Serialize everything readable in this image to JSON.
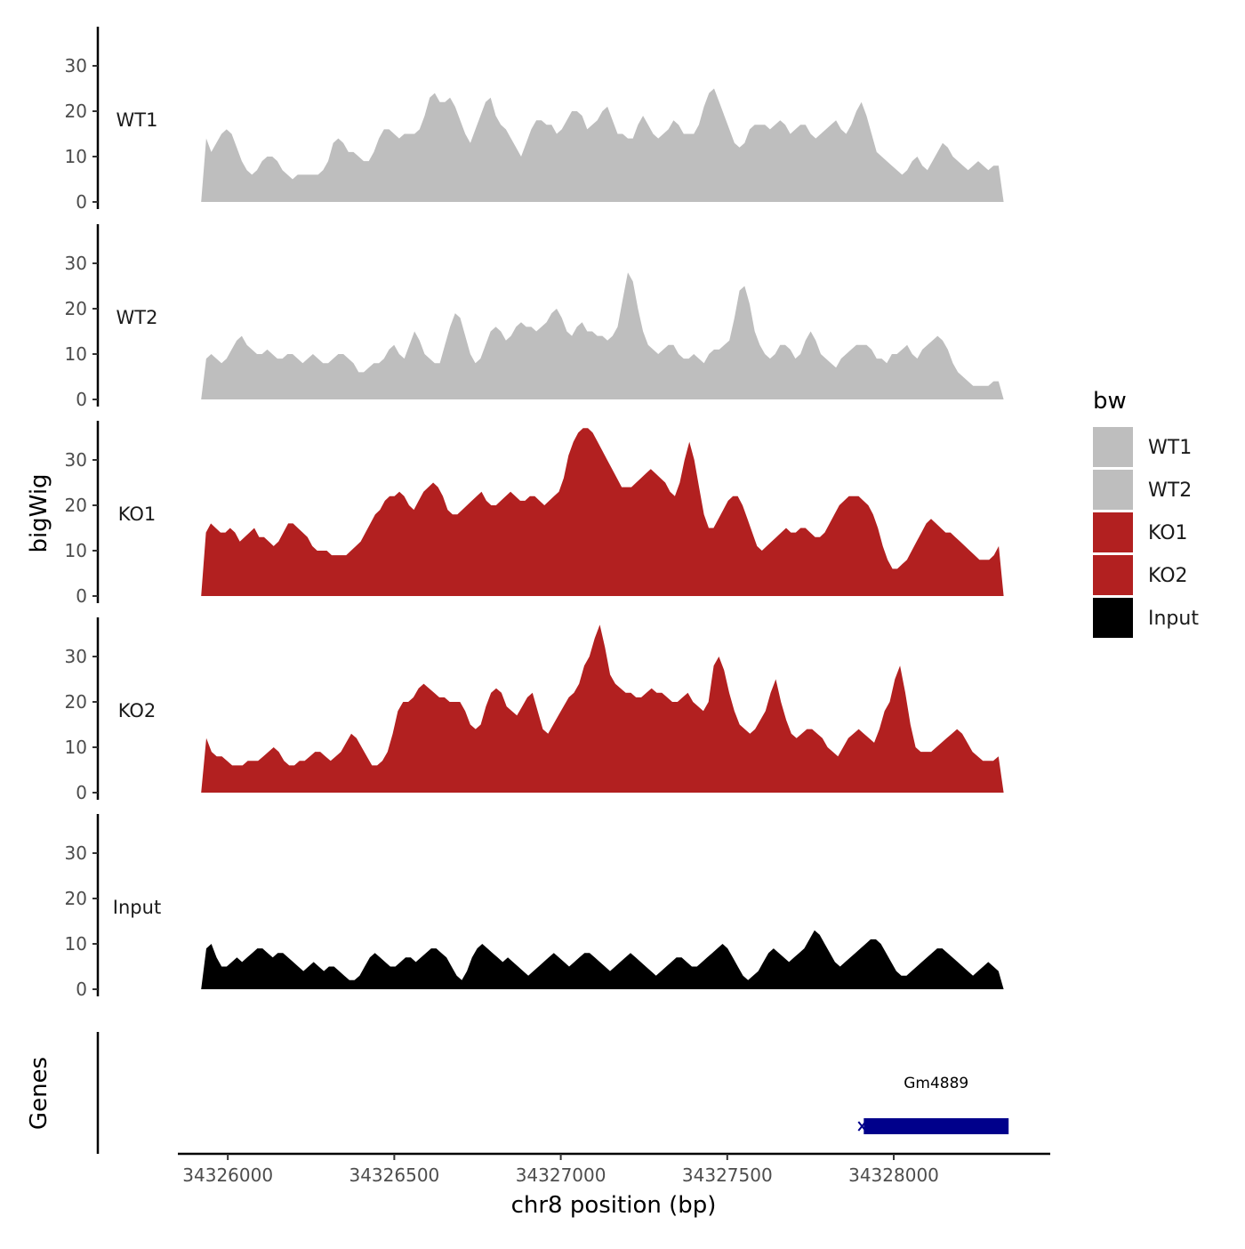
{
  "chart_data": {
    "type": "area",
    "title": "",
    "xlabel": "chr8 position (bp)",
    "ylabel": "bigWig",
    "genes_label": "Genes",
    "xlim": [
      34325850,
      34328470
    ],
    "ylim": [
      0,
      37
    ],
    "x_ticks": [
      34326000,
      34326500,
      34327000,
      34327500,
      34328000
    ],
    "y_ticks": [
      0,
      10,
      20,
      30
    ],
    "x_start": 34325920,
    "x_end": 34328330,
    "legend": {
      "title": "bw",
      "position": "right",
      "entries": [
        {
          "name": "WT1",
          "color": "#bebebe"
        },
        {
          "name": "WT2",
          "color": "#bebebe"
        },
        {
          "name": "KO1",
          "color": "#b22020"
        },
        {
          "name": "KO2",
          "color": "#b22020"
        },
        {
          "name": "Input",
          "color": "#000000"
        }
      ]
    },
    "series": [
      {
        "name": "WT1",
        "color": "#bebebe",
        "values": [
          0,
          14,
          11,
          13,
          15,
          16,
          15,
          12,
          9,
          7,
          6,
          7,
          9,
          10,
          10,
          9,
          7,
          6,
          5,
          6,
          6,
          6,
          6,
          6,
          7,
          9,
          13,
          14,
          13,
          11,
          11,
          10,
          9,
          9,
          11,
          14,
          16,
          16,
          15,
          14,
          15,
          15,
          15,
          16,
          19,
          23,
          24,
          22,
          22,
          23,
          21,
          18,
          15,
          13,
          16,
          19,
          22,
          23,
          19,
          17,
          16,
          14,
          12,
          10,
          13,
          16,
          18,
          18,
          17,
          17,
          15,
          16,
          18,
          20,
          20,
          19,
          16,
          17,
          18,
          20,
          21,
          18,
          15,
          15,
          14,
          14,
          17,
          19,
          17,
          15,
          14,
          15,
          16,
          18,
          17,
          15,
          15,
          15,
          17,
          21,
          24,
          25,
          22,
          19,
          16,
          13,
          12,
          13,
          16,
          17,
          17,
          17,
          16,
          17,
          18,
          17,
          15,
          16,
          17,
          17,
          15,
          14,
          15,
          16,
          17,
          18,
          16,
          15,
          17,
          20,
          22,
          19,
          15,
          11,
          10,
          9,
          8,
          7,
          6,
          7,
          9,
          10,
          8,
          7,
          9,
          11,
          13,
          12,
          10,
          9,
          8,
          7,
          8,
          9,
          8,
          7,
          8,
          8,
          0
        ]
      },
      {
        "name": "WT2",
        "color": "#bebebe",
        "values": [
          0,
          9,
          10,
          9,
          8,
          9,
          11,
          13,
          14,
          12,
          11,
          10,
          10,
          11,
          10,
          9,
          9,
          10,
          10,
          9,
          8,
          9,
          10,
          9,
          8,
          8,
          9,
          10,
          10,
          9,
          8,
          6,
          6,
          7,
          8,
          8,
          9,
          11,
          12,
          10,
          9,
          12,
          15,
          13,
          10,
          9,
          8,
          8,
          12,
          16,
          19,
          18,
          14,
          10,
          8,
          9,
          12,
          15,
          16,
          15,
          13,
          14,
          16,
          17,
          16,
          16,
          15,
          16,
          17,
          19,
          20,
          18,
          15,
          14,
          16,
          17,
          15,
          15,
          14,
          14,
          13,
          14,
          16,
          22,
          28,
          26,
          20,
          15,
          12,
          11,
          10,
          11,
          12,
          12,
          10,
          9,
          9,
          10,
          9,
          8,
          10,
          11,
          11,
          12,
          13,
          18,
          24,
          25,
          21,
          15,
          12,
          10,
          9,
          10,
          12,
          12,
          11,
          9,
          10,
          13,
          15,
          13,
          10,
          9,
          8,
          7,
          9,
          10,
          11,
          12,
          12,
          12,
          11,
          9,
          9,
          8,
          10,
          10,
          11,
          12,
          10,
          9,
          11,
          12,
          13,
          14,
          13,
          11,
          8,
          6,
          5,
          4,
          3,
          3,
          3,
          3,
          4,
          4,
          0
        ]
      },
      {
        "name": "KO1",
        "color": "#b22020",
        "values": [
          0,
          14,
          16,
          15,
          14,
          14,
          15,
          14,
          12,
          13,
          14,
          15,
          13,
          13,
          12,
          11,
          12,
          14,
          16,
          16,
          15,
          14,
          13,
          11,
          10,
          10,
          10,
          9,
          9,
          9,
          9,
          10,
          11,
          12,
          14,
          16,
          18,
          19,
          21,
          22,
          22,
          23,
          22,
          20,
          19,
          21,
          23,
          24,
          25,
          24,
          22,
          19,
          18,
          18,
          19,
          20,
          21,
          22,
          23,
          21,
          20,
          20,
          21,
          22,
          23,
          22,
          21,
          21,
          22,
          22,
          21,
          20,
          21,
          22,
          23,
          26,
          31,
          34,
          36,
          37,
          37,
          36,
          34,
          32,
          30,
          28,
          26,
          24,
          24,
          24,
          25,
          26,
          27,
          28,
          27,
          26,
          25,
          23,
          22,
          25,
          30,
          34,
          30,
          24,
          18,
          15,
          15,
          17,
          19,
          21,
          22,
          22,
          20,
          17,
          14,
          11,
          10,
          11,
          12,
          13,
          14,
          15,
          14,
          14,
          15,
          15,
          14,
          13,
          13,
          14,
          16,
          18,
          20,
          21,
          22,
          22,
          22,
          21,
          20,
          18,
          15,
          11,
          8,
          6,
          6,
          7,
          8,
          10,
          12,
          14,
          16,
          17,
          16,
          15,
          14,
          14,
          13,
          12,
          11,
          10,
          9,
          8,
          8,
          8,
          9,
          11,
          0
        ]
      },
      {
        "name": "KO2",
        "color": "#b22020",
        "values": [
          0,
          12,
          9,
          8,
          8,
          7,
          6,
          6,
          6,
          7,
          7,
          7,
          8,
          9,
          10,
          9,
          7,
          6,
          6,
          7,
          7,
          8,
          9,
          9,
          8,
          7,
          8,
          9,
          11,
          13,
          12,
          10,
          8,
          6,
          6,
          7,
          9,
          13,
          18,
          20,
          20,
          21,
          23,
          24,
          23,
          22,
          21,
          21,
          20,
          20,
          20,
          18,
          15,
          14,
          15,
          19,
          22,
          23,
          22,
          19,
          18,
          17,
          19,
          21,
          22,
          18,
          14,
          13,
          15,
          17,
          19,
          21,
          22,
          24,
          28,
          30,
          34,
          37,
          32,
          26,
          24,
          23,
          22,
          22,
          21,
          21,
          22,
          23,
          22,
          22,
          21,
          20,
          20,
          21,
          22,
          20,
          19,
          18,
          20,
          28,
          30,
          27,
          22,
          18,
          15,
          14,
          13,
          14,
          16,
          18,
          22,
          25,
          20,
          16,
          13,
          12,
          13,
          14,
          14,
          13,
          12,
          10,
          9,
          8,
          10,
          12,
          13,
          14,
          13,
          12,
          11,
          14,
          18,
          20,
          25,
          28,
          22,
          15,
          10,
          9,
          9,
          9,
          10,
          11,
          12,
          13,
          14,
          13,
          11,
          9,
          8,
          7,
          7,
          7,
          8,
          0
        ]
      },
      {
        "name": "Input",
        "color": "#000000",
        "values": [
          0,
          9,
          10,
          7,
          5,
          5,
          6,
          7,
          6,
          7,
          8,
          9,
          9,
          8,
          7,
          8,
          8,
          7,
          6,
          5,
          4,
          5,
          6,
          5,
          4,
          5,
          5,
          4,
          3,
          2,
          2,
          3,
          5,
          7,
          8,
          7,
          6,
          5,
          5,
          6,
          7,
          7,
          6,
          7,
          8,
          9,
          9,
          8,
          7,
          5,
          3,
          2,
          4,
          7,
          9,
          10,
          9,
          8,
          7,
          6,
          7,
          6,
          5,
          4,
          3,
          4,
          5,
          6,
          7,
          8,
          7,
          6,
          5,
          6,
          7,
          8,
          8,
          7,
          6,
          5,
          4,
          5,
          6,
          7,
          8,
          7,
          6,
          5,
          4,
          3,
          4,
          5,
          6,
          7,
          7,
          6,
          5,
          5,
          6,
          7,
          8,
          9,
          10,
          9,
          7,
          5,
          3,
          2,
          3,
          4,
          6,
          8,
          9,
          8,
          7,
          6,
          7,
          8,
          9,
          11,
          13,
          12,
          10,
          8,
          6,
          5,
          6,
          7,
          8,
          9,
          10,
          11,
          11,
          10,
          8,
          6,
          4,
          3,
          3,
          4,
          5,
          6,
          7,
          8,
          9,
          9,
          8,
          7,
          6,
          5,
          4,
          3,
          4,
          5,
          6,
          5,
          4,
          0
        ]
      }
    ],
    "genes": [
      {
        "name": "Gm4889",
        "start": 34327910,
        "end": 34328345,
        "color": "#00008b"
      }
    ]
  }
}
